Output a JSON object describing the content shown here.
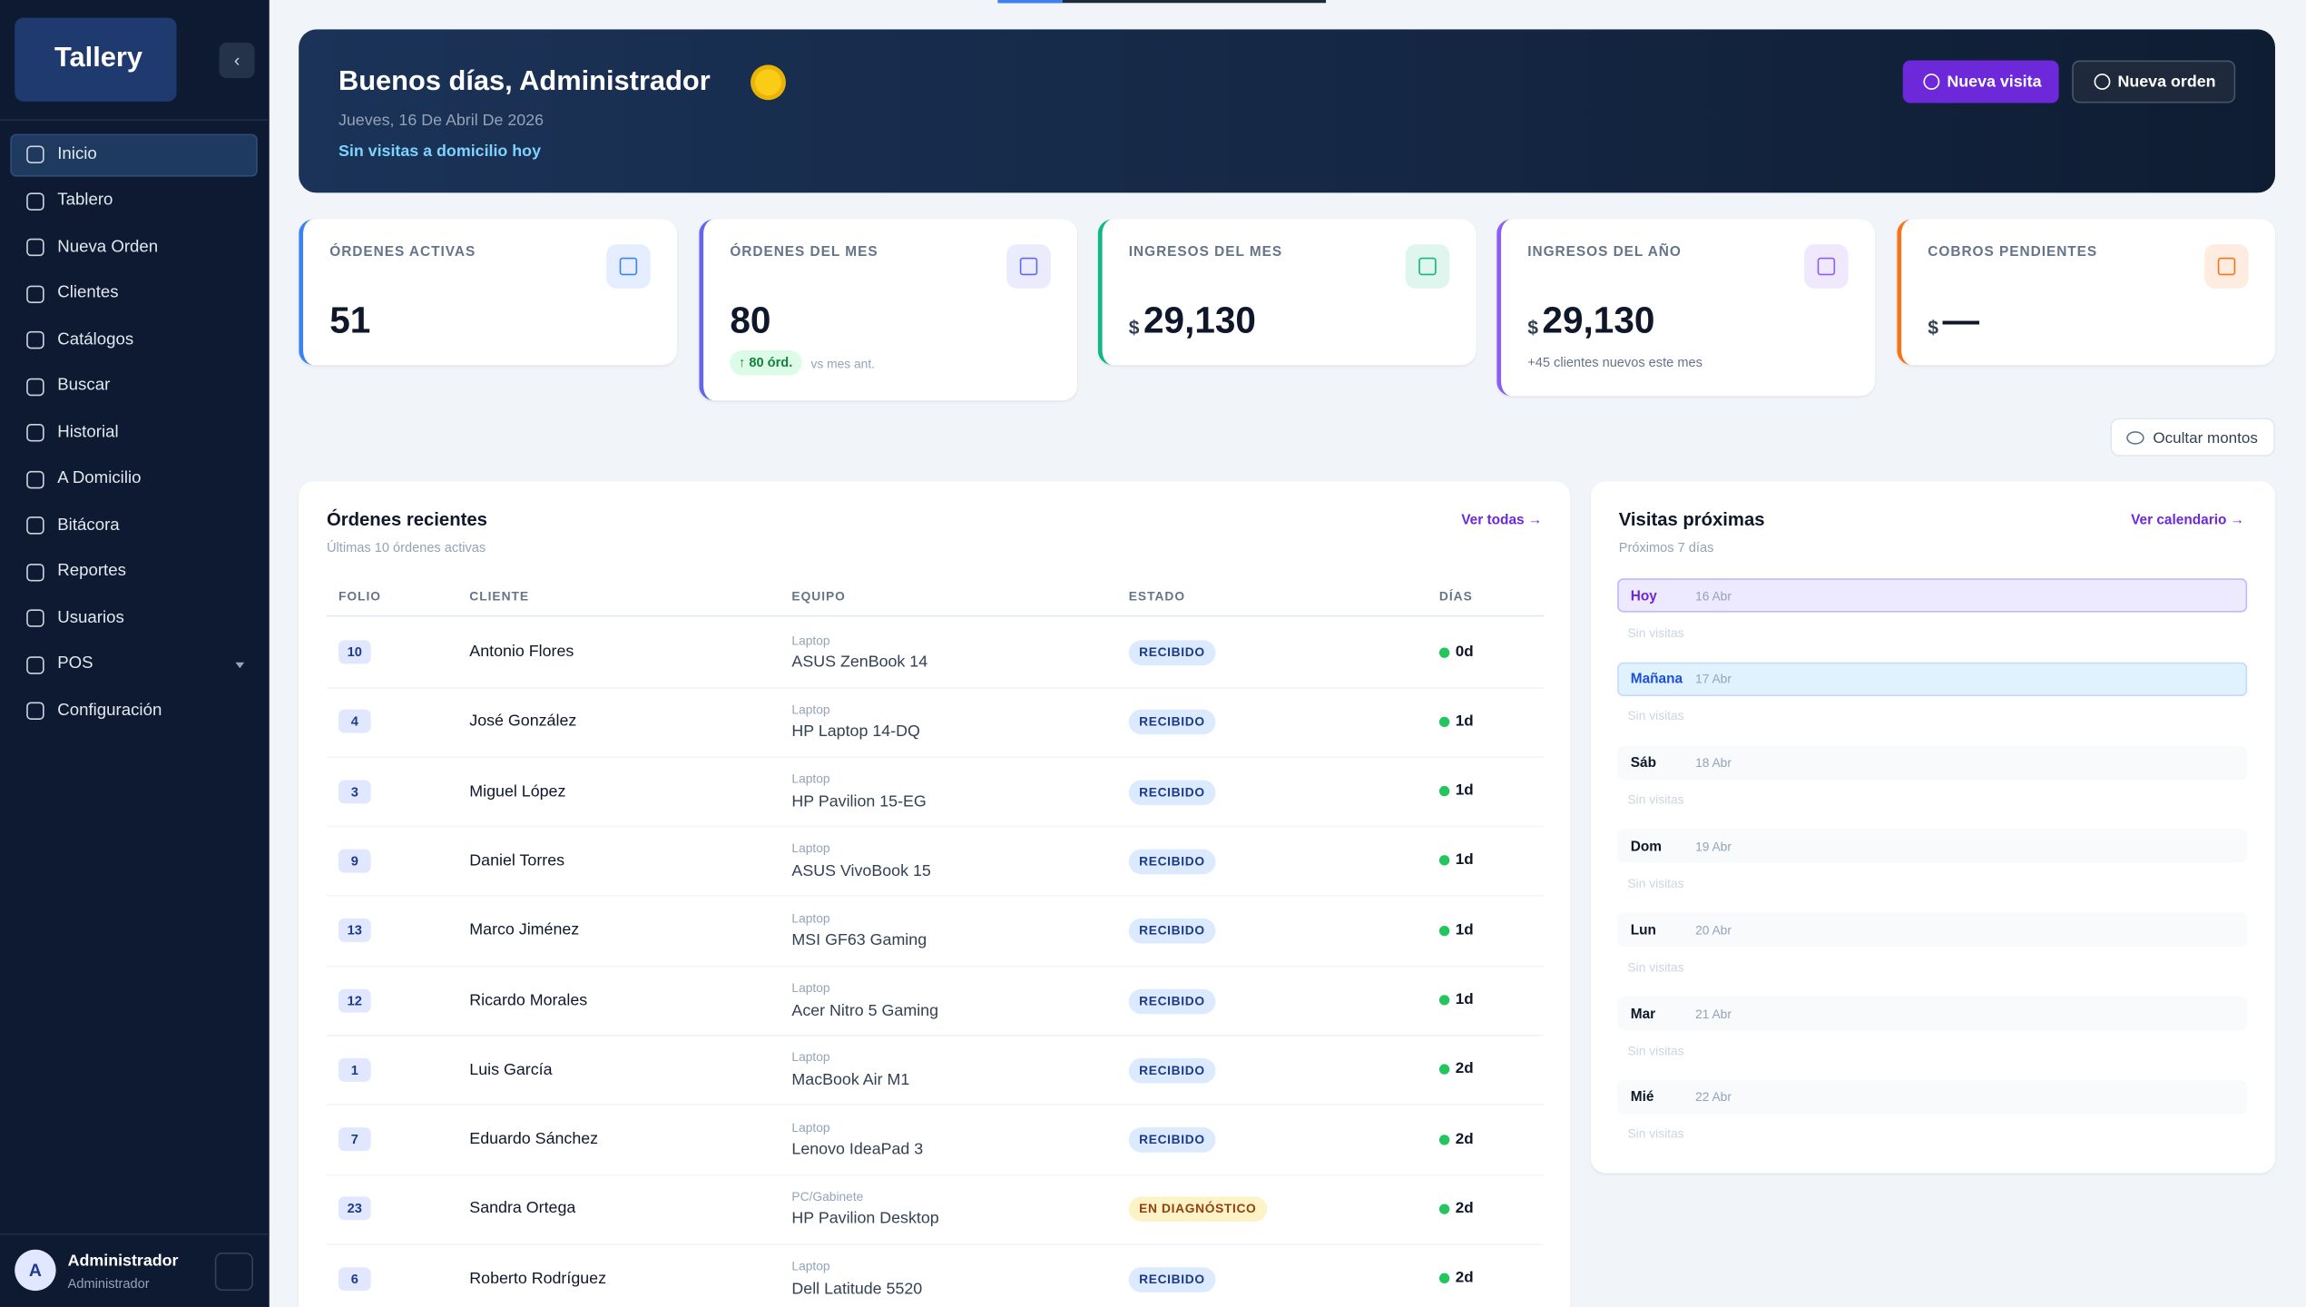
{
  "sidebar": {
    "logo": "Tallery",
    "nav": [
      "Inicio",
      "Tablero",
      "Nueva Orden",
      "Clientes",
      "Catálogos",
      "Buscar",
      "Historial",
      "A Domicilio",
      "Bitácora",
      "Reportes",
      "Usuarios",
      "POS",
      "Configuración"
    ],
    "user": {
      "initial": "A",
      "name": "Administrador",
      "role": "Administrador"
    }
  },
  "header": {
    "greeting": "Buenos días, Administrador",
    "date": "Jueves, 16 De Abril De 2026",
    "subtitle": "Sin visitas a domicilio hoy",
    "buttons": [
      "Nueva visita",
      "Nueva orden"
    ]
  },
  "stats": [
    {
      "label": "ÓRDENES ACTIVAS",
      "value": "51",
      "color": "#3b82f6"
    },
    {
      "label": "ÓRDENES DEL MES",
      "value": "80",
      "badge": "↑ 80 órd.",
      "note": "vs mes ant.",
      "color": "#6366f1"
    },
    {
      "label": "INGRESOS DEL MES",
      "currency": "$",
      "value": "29,130",
      "color": "#10b981"
    },
    {
      "label": "INGRESOS DEL AÑO",
      "currency": "$",
      "value": "29,130",
      "note": "+45 clientes nuevos este mes",
      "color": "#8b5cf6"
    },
    {
      "label": "COBROS PENDIENTES",
      "currency": "$",
      "value": "—",
      "color": "#f97316"
    }
  ],
  "hide_amounts": "Ocultar montos",
  "orders": {
    "title": "Órdenes recientes",
    "subtitle": "Últimas 10 órdenes activas",
    "link": "Ver todas →",
    "columns": [
      "FOLIO",
      "CLIENTE",
      "EQUIPO",
      "ESTADO",
      "DÍAS"
    ],
    "rows": [
      {
        "folio": "10",
        "cliente": "Antonio Flores",
        "tipo": "Laptop",
        "equipo": "ASUS ZenBook 14",
        "estado": "RECIBIDO",
        "estado_bg": "#dbeafe",
        "estado_fg": "#1e3a8a",
        "dias": "0d"
      },
      {
        "folio": "4",
        "cliente": "José González",
        "tipo": "Laptop",
        "equipo": "HP Laptop 14-DQ",
        "estado": "RECIBIDO",
        "estado_bg": "#dbeafe",
        "estado_fg": "#1e3a8a",
        "dias": "1d"
      },
      {
        "folio": "3",
        "cliente": "Miguel López",
        "tipo": "Laptop",
        "equipo": "HP Pavilion 15-EG",
        "estado": "RECIBIDO",
        "estado_bg": "#dbeafe",
        "estado_fg": "#1e3a8a",
        "dias": "1d"
      },
      {
        "folio": "9",
        "cliente": "Daniel Torres",
        "tipo": "Laptop",
        "equipo": "ASUS VivoBook 15",
        "estado": "RECIBIDO",
        "estado_bg": "#dbeafe",
        "estado_fg": "#1e3a8a",
        "dias": "1d"
      },
      {
        "folio": "13",
        "cliente": "Marco Jiménez",
        "tipo": "Laptop",
        "equipo": "MSI GF63 Gaming",
        "estado": "RECIBIDO",
        "estado_bg": "#dbeafe",
        "estado_fg": "#1e3a8a",
        "dias": "1d"
      },
      {
        "folio": "12",
        "cliente": "Ricardo Morales",
        "tipo": "Laptop",
        "equipo": "Acer Nitro 5 Gaming",
        "estado": "RECIBIDO",
        "estado_bg": "#dbeafe",
        "estado_fg": "#1e3a8a",
        "dias": "1d"
      },
      {
        "folio": "1",
        "cliente": "Luis García",
        "tipo": "Laptop",
        "equipo": "MacBook Air M1",
        "estado": "RECIBIDO",
        "estado_bg": "#dbeafe",
        "estado_fg": "#1e3a8a",
        "dias": "2d"
      },
      {
        "folio": "7",
        "cliente": "Eduardo Sánchez",
        "tipo": "Laptop",
        "equipo": "Lenovo IdeaPad 3",
        "estado": "RECIBIDO",
        "estado_bg": "#dbeafe",
        "estado_fg": "#1e3a8a",
        "dias": "2d"
      },
      {
        "folio": "23",
        "cliente": "Sandra Ortega",
        "tipo": "PC/Gabinete",
        "equipo": "HP Pavilion Desktop",
        "estado": "EN DIAGNÓSTICO",
        "estado_bg": "#fef3c7",
        "estado_fg": "#92400e",
        "dias": "2d"
      },
      {
        "folio": "6",
        "cliente": "Roberto Rodríguez",
        "tipo": "Laptop",
        "equipo": "Dell Latitude 5520",
        "estado": "RECIBIDO",
        "estado_bg": "#dbeafe",
        "estado_fg": "#1e3a8a",
        "dias": "2d"
      }
    ]
  },
  "visits": {
    "title": "Visitas próximas",
    "subtitle": "Próximos 7 días",
    "link": "Ver calendario →",
    "days": [
      {
        "day": "Hoy",
        "date": "16 Abr",
        "empty": "Sin visitas",
        "bg": "#ede9fe",
        "border": "#c4b5fd",
        "fg": "#6d28d9"
      },
      {
        "day": "Mañana",
        "date": "17 Abr",
        "empty": "Sin visitas",
        "bg": "#e0f2fe",
        "border": "#bfdbfe",
        "fg": "#1d4ed8"
      },
      {
        "day": "Sáb",
        "date": "18 Abr",
        "empty": "Sin visitas",
        "bg": "#f8fafc",
        "border": "#f8fafc",
        "fg": "#0f172a"
      },
      {
        "day": "Dom",
        "date": "19 Abr",
        "empty": "Sin visitas",
        "bg": "#f8fafc",
        "border": "#f8fafc",
        "fg": "#0f172a"
      },
      {
        "day": "Lun",
        "date": "20 Abr",
        "empty": "Sin visitas",
        "bg": "#f8fafc",
        "border": "#f8fafc",
        "fg": "#0f172a"
      },
      {
        "day": "Mar",
        "date": "21 Abr",
        "empty": "Sin visitas",
        "bg": "#f8fafc",
        "border": "#f8fafc",
        "fg": "#0f172a"
      },
      {
        "day": "Mié",
        "date": "22 Abr",
        "empty": "Sin visitas",
        "bg": "#f8fafc",
        "border": "#f8fafc",
        "fg": "#0f172a"
      }
    ]
  }
}
